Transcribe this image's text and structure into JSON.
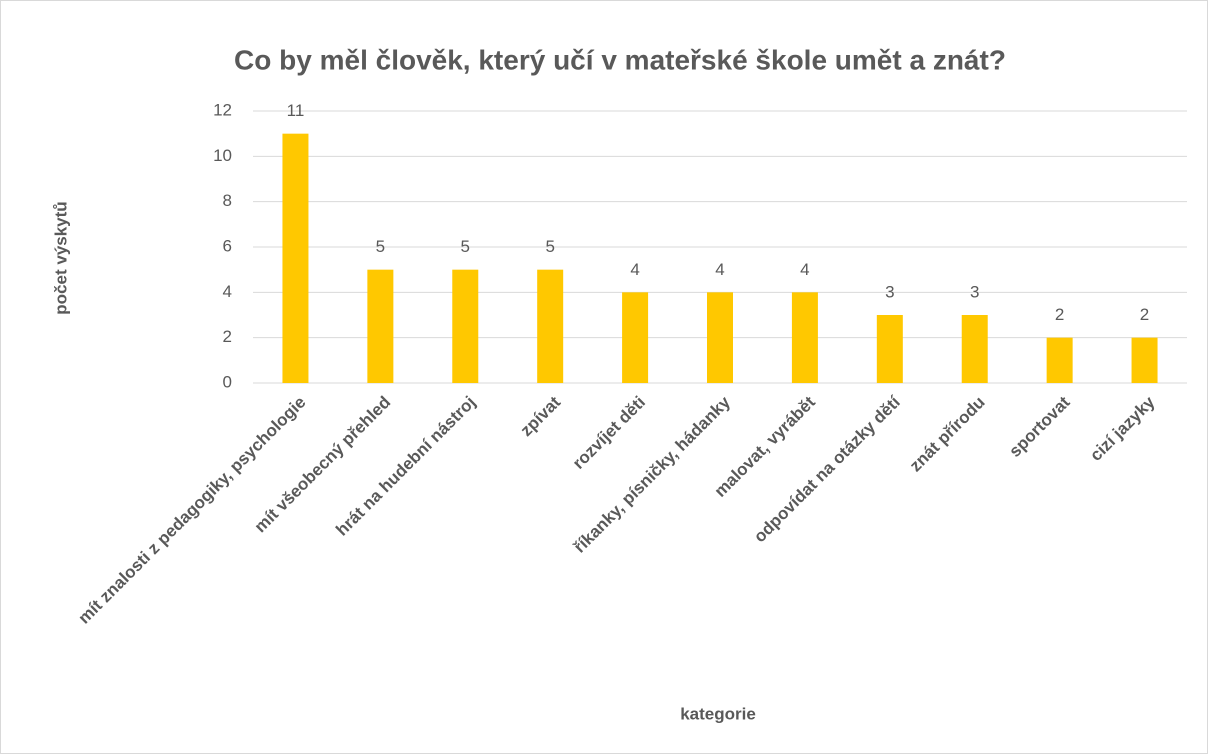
{
  "chart_data": {
    "type": "bar",
    "title": "Co by měl člověk, který učí v mateřské škole umět a znát?",
    "x_label": "kategorie",
    "y_label": "počet výskytů",
    "categories": [
      "mít znalosti z pedagogiky, psychologie",
      "mít všeobecný přehled",
      "hrát na hudební nástroj",
      "zpívat",
      "rozvíjet děti",
      "říkanky, písničky, hádanky",
      "malovat, vyrábět",
      "odpovídat na otázky dětí",
      "znát přírodu",
      "sportovat",
      "cizí jazyky"
    ],
    "values": [
      11,
      5,
      5,
      5,
      4,
      4,
      4,
      3,
      3,
      2,
      2
    ],
    "color": "#ffc800",
    "ylim": [
      0,
      12
    ],
    "yticks": [
      0,
      2,
      4,
      6,
      8,
      10,
      12
    ],
    "grid": true,
    "data_labels": true
  }
}
